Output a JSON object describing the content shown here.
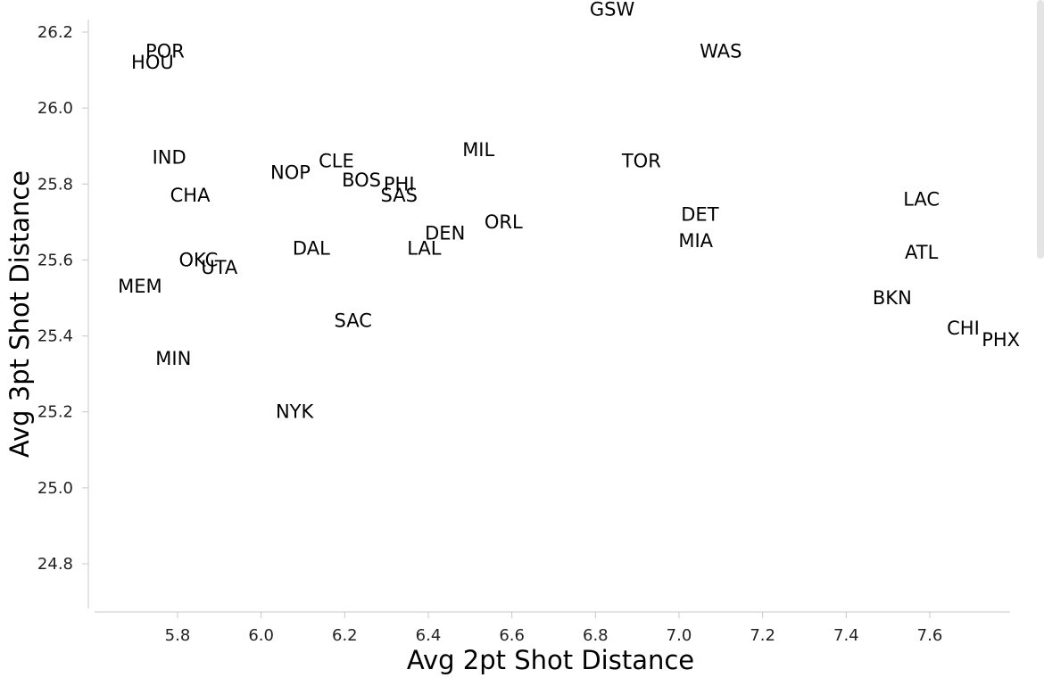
{
  "chart_data": {
    "type": "scatter",
    "title": "",
    "xlabel": "Avg 2pt Shot Distance",
    "ylabel": "Avg 3pt Shot Distance",
    "xlim": [
      5.585,
      7.78
    ],
    "ylim": [
      24.67,
      26.27
    ],
    "xticks": [
      5.8,
      6.0,
      6.2,
      6.4,
      6.6,
      6.8,
      7.0,
      7.2,
      7.4,
      7.6
    ],
    "yticks": [
      24.8,
      25.0,
      25.2,
      25.4,
      25.6,
      25.8,
      26.0,
      26.2
    ],
    "grid": false,
    "points": [
      {
        "label": "GSW",
        "x": 6.84,
        "y": 26.26
      },
      {
        "label": "POR",
        "x": 5.77,
        "y": 26.15
      },
      {
        "label": "HOU",
        "x": 5.74,
        "y": 26.12
      },
      {
        "label": "WAS",
        "x": 7.1,
        "y": 26.15
      },
      {
        "label": "MIL",
        "x": 6.52,
        "y": 25.89
      },
      {
        "label": "IND",
        "x": 5.78,
        "y": 25.87
      },
      {
        "label": "CLE",
        "x": 6.18,
        "y": 25.86
      },
      {
        "label": "TOR",
        "x": 6.91,
        "y": 25.86
      },
      {
        "label": "NOP",
        "x": 6.07,
        "y": 25.83
      },
      {
        "label": "BOS",
        "x": 6.24,
        "y": 25.81
      },
      {
        "label": "PHI",
        "x": 6.33,
        "y": 25.8
      },
      {
        "label": "SAS",
        "x": 6.33,
        "y": 25.77
      },
      {
        "label": "CHA",
        "x": 5.83,
        "y": 25.77
      },
      {
        "label": "LAC",
        "x": 7.58,
        "y": 25.76
      },
      {
        "label": "DET",
        "x": 7.05,
        "y": 25.72
      },
      {
        "label": "ORL",
        "x": 6.58,
        "y": 25.7
      },
      {
        "label": "DEN",
        "x": 6.44,
        "y": 25.67
      },
      {
        "label": "MIA",
        "x": 7.04,
        "y": 25.65
      },
      {
        "label": "DAL",
        "x": 6.12,
        "y": 25.63
      },
      {
        "label": "LAL",
        "x": 6.39,
        "y": 25.63
      },
      {
        "label": "ATL",
        "x": 7.58,
        "y": 25.62
      },
      {
        "label": "OKC",
        "x": 5.85,
        "y": 25.6
      },
      {
        "label": "UTA",
        "x": 5.9,
        "y": 25.58
      },
      {
        "label": "MEM",
        "x": 5.71,
        "y": 25.53
      },
      {
        "label": "BKN",
        "x": 7.51,
        "y": 25.5
      },
      {
        "label": "SAC",
        "x": 6.22,
        "y": 25.44
      },
      {
        "label": "CHI",
        "x": 7.68,
        "y": 25.42
      },
      {
        "label": "PHX",
        "x": 7.77,
        "y": 25.39
      },
      {
        "label": "MIN",
        "x": 5.79,
        "y": 25.34
      },
      {
        "label": "NYK",
        "x": 6.08,
        "y": 25.2
      }
    ]
  },
  "colors": {
    "axis": "#c8c8c8",
    "text": "#000000",
    "tick_text": "#222222",
    "scrollbar": "#e4e4e4"
  }
}
